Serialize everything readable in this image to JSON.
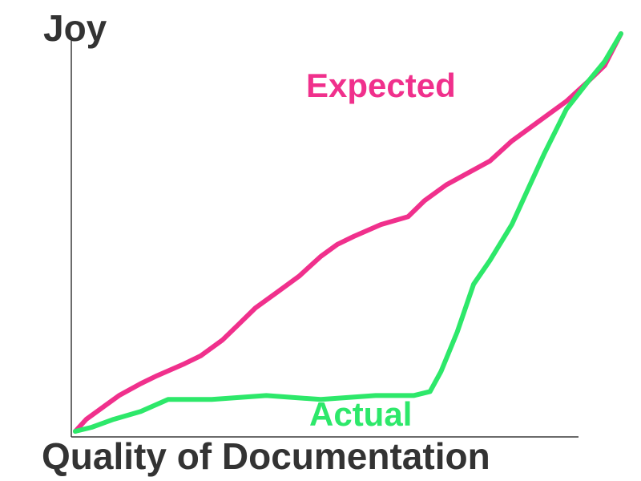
{
  "chart_data": {
    "type": "line",
    "title": "",
    "xlabel": "Quality of Documentation",
    "ylabel": "Joy",
    "xlim": [
      0,
      100
    ],
    "ylim": [
      0,
      100
    ],
    "grid": false,
    "legend": "none",
    "series": [
      {
        "name": "Expected",
        "color": "#f0308c",
        "x": [
          0,
          2,
          5,
          8,
          12,
          15,
          20,
          23,
          27,
          30,
          33,
          37,
          41,
          45,
          48,
          51,
          56,
          61,
          64,
          68,
          72,
          76,
          80,
          85,
          90,
          94,
          97,
          100
        ],
        "y": [
          0,
          3,
          6,
          9,
          12,
          14,
          17,
          19,
          23,
          27,
          31,
          35,
          39,
          44,
          47,
          49,
          52,
          54,
          58,
          62,
          65,
          68,
          73,
          78,
          83,
          88,
          92,
          100
        ]
      },
      {
        "name": "Actual",
        "color": "#2de86a",
        "x": [
          0,
          3,
          7,
          12,
          17,
          25,
          35,
          45,
          55,
          62,
          65,
          67,
          70,
          73,
          76,
          80,
          83,
          86,
          90,
          94,
          97,
          100
        ],
        "y": [
          0,
          1,
          3,
          5,
          8,
          8,
          9,
          8,
          9,
          9,
          10,
          15,
          25,
          37,
          43,
          52,
          61,
          70,
          81,
          88,
          93,
          100
        ]
      }
    ]
  }
}
